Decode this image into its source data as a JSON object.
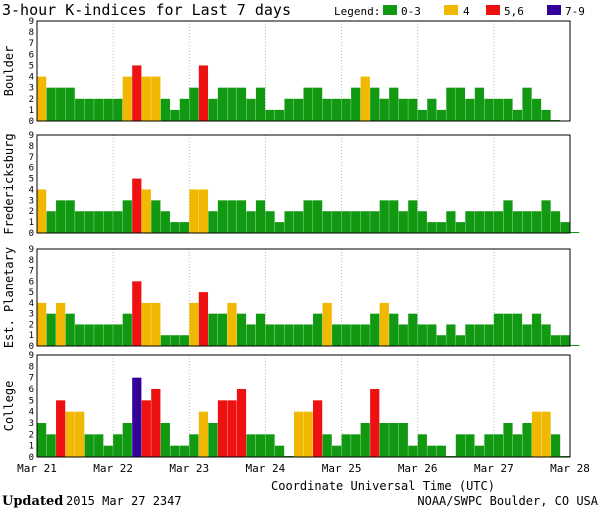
{
  "chart_data": {
    "type": "bar",
    "title": "3-hour K-indices for Last 7 days",
    "legend_label": "Legend:",
    "legend": [
      {
        "label": "0-3",
        "color": "#119911"
      },
      {
        "label": "4",
        "color": "#F0B800"
      },
      {
        "label": "5,6",
        "color": "#EE1111"
      },
      {
        "label": "7-9",
        "color": "#330099"
      }
    ],
    "ylim": [
      0,
      9
    ],
    "yticks": [
      "0",
      "1",
      "2",
      "3",
      "4",
      "5",
      "6",
      "7",
      "8",
      "9"
    ],
    "xlabel": "Coordinate Universal Time (UTC)",
    "x_tick_labels": [
      "Mar 21",
      "Mar 22",
      "Mar 23",
      "Mar 24",
      "Mar 25",
      "Mar 26",
      "Mar 27",
      "Mar 28"
    ],
    "series": [
      {
        "name": "Boulder",
        "values": [
          4,
          3,
          3,
          3,
          2,
          2,
          2,
          2,
          2,
          4,
          5,
          4,
          4,
          2,
          1,
          2,
          3,
          5,
          2,
          3,
          3,
          3,
          2,
          3,
          1,
          1,
          2,
          2,
          3,
          3,
          2,
          2,
          2,
          3,
          4,
          3,
          2,
          3,
          2,
          2,
          1,
          2,
          1,
          3,
          3,
          2,
          3,
          2,
          2,
          2,
          1,
          3,
          2,
          1,
          0
        ]
      },
      {
        "name": "Fredericksburg",
        "values": [
          4,
          2,
          3,
          3,
          2,
          2,
          2,
          2,
          2,
          3,
          5,
          4,
          3,
          2,
          1,
          1,
          4,
          4,
          2,
          3,
          3,
          3,
          2,
          3,
          2,
          1,
          2,
          2,
          3,
          3,
          2,
          2,
          2,
          2,
          2,
          2,
          3,
          3,
          2,
          3,
          2,
          1,
          1,
          2,
          1,
          2,
          2,
          2,
          2,
          3,
          2,
          2,
          2,
          3,
          2,
          1,
          0
        ]
      },
      {
        "name": "Est. Planetary",
        "values": [
          4,
          3,
          4,
          3,
          2,
          2,
          2,
          2,
          2,
          3,
          6,
          4,
          4,
          1,
          1,
          1,
          4,
          5,
          3,
          3,
          4,
          3,
          2,
          3,
          2,
          2,
          2,
          2,
          2,
          3,
          4,
          2,
          2,
          2,
          2,
          3,
          4,
          3,
          2,
          3,
          2,
          2,
          1,
          2,
          1,
          2,
          2,
          2,
          3,
          3,
          3,
          2,
          3,
          2,
          1,
          1,
          0
        ]
      },
      {
        "name": "College",
        "values": [
          3,
          2,
          5,
          4,
          4,
          2,
          2,
          1,
          2,
          3,
          7,
          5,
          6,
          3,
          1,
          1,
          2,
          4,
          3,
          5,
          5,
          6,
          2,
          2,
          2,
          1,
          0,
          4,
          4,
          5,
          2,
          1,
          2,
          2,
          3,
          6,
          3,
          3,
          3,
          1,
          2,
          1,
          1,
          0,
          2,
          2,
          1,
          2,
          2,
          3,
          2,
          3,
          4,
          4,
          2,
          0
        ]
      }
    ]
  },
  "footer": {
    "updated_label": "Updated",
    "updated_value": "2015 Mar 27 2347",
    "source": "NOAA/SWPC Boulder, CO USA"
  }
}
